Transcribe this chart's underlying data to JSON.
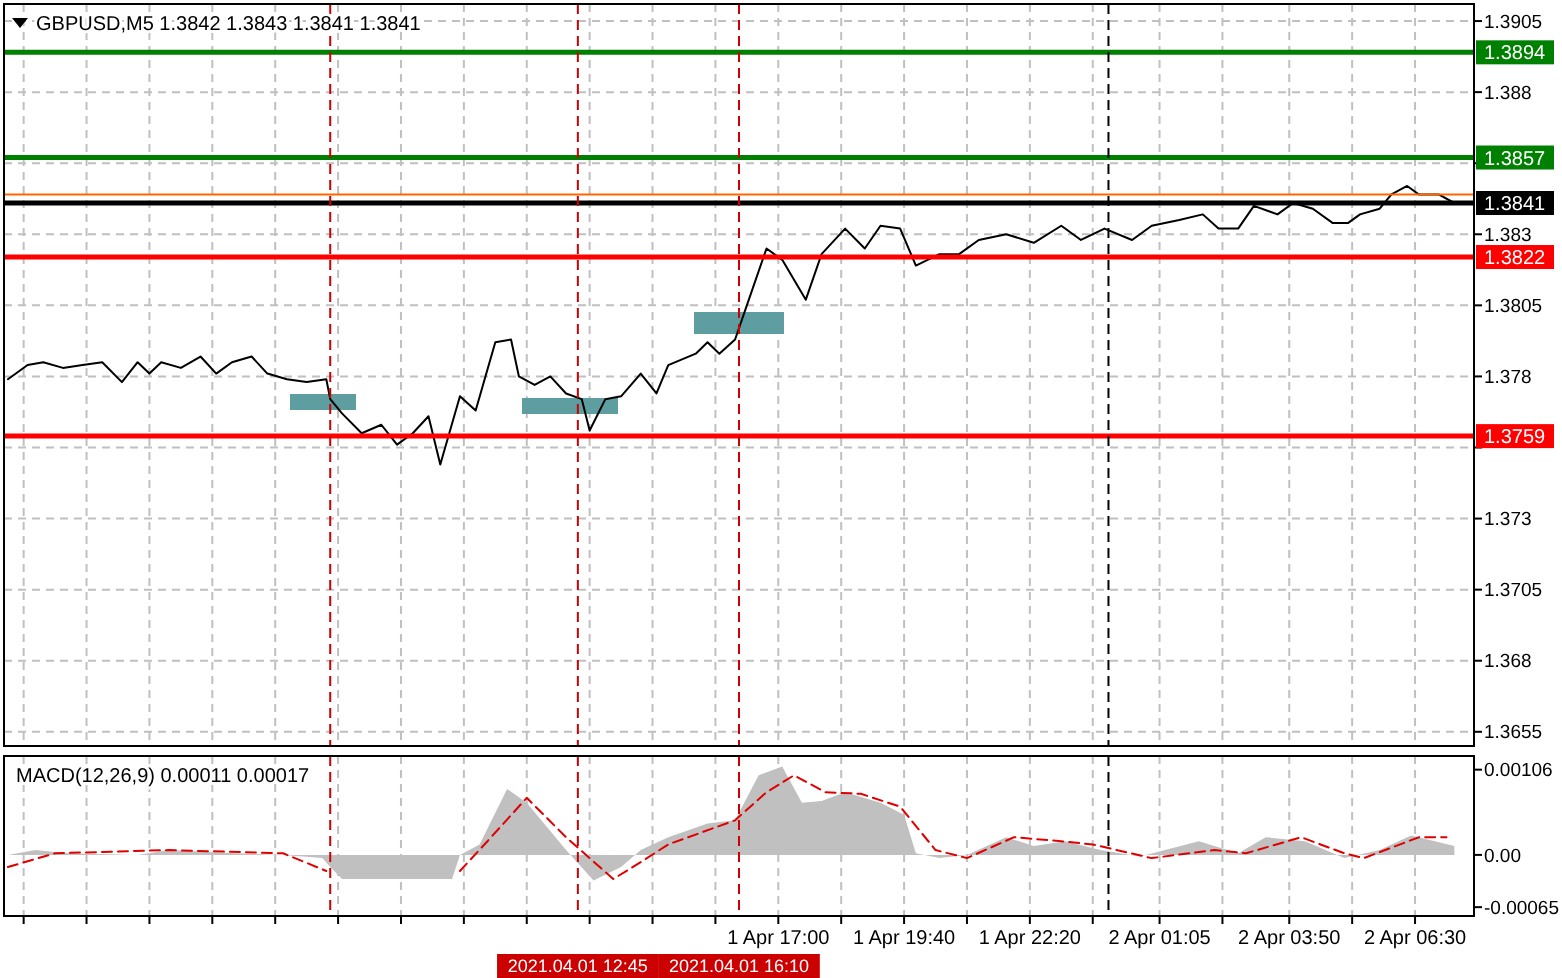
{
  "chart_data": [
    {
      "type": "line",
      "title": "GBPUSD,M5  1.3842 1.3843 1.3841 1.3841",
      "tick_labels": "y",
      "grid": true,
      "xlim": [
        "2021-04-01T00:35",
        "2021-04-02T07:45"
      ],
      "xticks": [
        {
          "value": "2021-04-01T01:00",
          "label": null
        },
        {
          "value": "2021-04-01T02:20",
          "label": null
        },
        {
          "value": "2021-04-01T03:40",
          "label": null
        },
        {
          "value": "2021-04-01T05:00",
          "label": null
        },
        {
          "value": "2021-04-01T06:20",
          "label": null
        },
        {
          "value": "2021-04-01T07:40",
          "label": null
        },
        {
          "value": "2021-04-01T09:00",
          "label": null
        },
        {
          "value": "2021-04-01T10:20",
          "label": null
        },
        {
          "value": "2021-04-01T11:40",
          "label": null
        },
        {
          "value": "2021-04-01T13:00",
          "label": null
        },
        {
          "value": "2021-04-01T14:20",
          "label": null
        },
        {
          "value": "2021-04-01T15:40",
          "label": null
        },
        {
          "value": "2021-04-01T17:00",
          "label": null
        },
        {
          "value": "2021-04-01T18:20",
          "label": null
        },
        {
          "value": "2021-04-01T19:40",
          "label": null
        },
        {
          "value": "2021-04-01T21:00",
          "label": null
        },
        {
          "value": "2021-04-01T22:20",
          "label": null
        },
        {
          "value": "2021-04-01T23:40",
          "label": null
        },
        {
          "value": "2021-04-02T01:05",
          "label": null
        },
        {
          "value": "2021-04-02T02:25",
          "label": null
        },
        {
          "value": "2021-04-02T03:50",
          "label": null
        },
        {
          "value": "2021-04-02T05:10",
          "label": null
        },
        {
          "value": "2021-04-02T06:30",
          "label": null
        }
      ],
      "ylim": [
        1.365,
        1.3911
      ],
      "yticks": [
        1.3905,
        1.388,
        {
          "value": 1.3855,
          "label": null
        },
        1.383,
        1.3805,
        1.378,
        {
          "value": 1.3755,
          "label": null
        },
        1.373,
        1.3705,
        1.368,
        1.3655
      ],
      "series": [
        {
          "color": "#000000",
          "x": [
            "2021-04-01T00:40",
            "2021-04-01T01:05",
            "2021-04-01T01:25",
            "2021-04-01T01:50",
            "2021-04-01T02:15",
            "2021-04-01T02:40",
            "2021-04-01T03:05",
            "2021-04-01T03:25",
            "2021-04-01T03:40",
            "2021-04-01T03:55",
            "2021-04-01T04:20",
            "2021-04-01T04:45",
            "2021-04-01T05:05",
            "2021-04-01T05:25",
            "2021-04-01T05:50",
            "2021-04-01T06:10",
            "2021-04-01T06:35",
            "2021-04-01T07:00",
            "2021-04-01T07:25",
            "2021-04-01T07:30",
            "2021-04-01T07:45",
            "2021-04-01T08:10",
            "2021-04-01T08:35",
            "2021-04-01T08:55",
            "2021-04-01T09:15",
            "2021-04-01T09:35",
            "2021-04-01T09:50",
            "2021-04-01T10:15",
            "2021-04-01T10:35",
            "2021-04-01T11:00",
            "2021-04-01T11:20",
            "2021-04-01T11:30",
            "2021-04-01T11:50",
            "2021-04-01T12:10",
            "2021-04-01T12:30",
            "2021-04-01T12:50",
            "2021-04-01T13:00",
            "2021-04-01T13:20",
            "2021-04-01T13:40",
            "2021-04-01T14:05",
            "2021-04-01T14:25",
            "2021-04-01T14:40",
            "2021-04-01T15:15",
            "2021-04-01T15:30",
            "2021-04-01T15:45",
            "2021-04-01T16:05",
            "2021-04-01T16:20",
            "2021-04-01T16:45",
            "2021-04-01T17:05",
            "2021-04-01T17:35",
            "2021-04-01T17:55",
            "2021-04-01T18:25",
            "2021-04-01T18:50",
            "2021-04-01T19:10",
            "2021-04-01T19:35",
            "2021-04-01T19:55",
            "2021-04-01T20:25",
            "2021-04-01T20:50",
            "2021-04-01T21:15",
            "2021-04-01T21:50",
            "2021-04-01T22:25",
            "2021-04-01T23:00",
            "2021-04-01T23:25",
            "2021-04-01T23:55",
            "2021-04-02T00:30",
            "2021-04-02T00:55",
            "2021-04-02T01:30",
            "2021-04-02T02:00",
            "2021-04-02T02:20",
            "2021-04-02T02:45",
            "2021-04-02T03:05",
            "2021-04-02T03:35",
            "2021-04-02T03:55",
            "2021-04-02T04:20",
            "2021-04-02T04:45",
            "2021-04-02T05:05",
            "2021-04-02T05:20",
            "2021-04-02T05:45",
            "2021-04-02T06:00",
            "2021-04-02T06:20",
            "2021-04-02T06:35",
            "2021-04-02T07:00",
            "2021-04-02T07:20"
          ],
          "values": [
            1.3779,
            1.3784,
            1.3785,
            1.3783,
            1.3784,
            1.3785,
            1.3778,
            1.3785,
            1.3781,
            1.3785,
            1.3783,
            1.3787,
            1.3781,
            1.3785,
            1.3787,
            1.3781,
            1.3779,
            1.3778,
            1.3779,
            1.3772,
            1.3767,
            1.376,
            1.3763,
            1.3756,
            1.376,
            1.3766,
            1.3749,
            1.3773,
            1.3768,
            1.3792,
            1.3793,
            1.378,
            1.3777,
            1.378,
            1.3774,
            1.3772,
            1.3761,
            1.3772,
            1.3773,
            1.3781,
            1.3774,
            1.3784,
            1.3788,
            1.3792,
            1.3788,
            1.3793,
            1.3805,
            1.3825,
            1.3821,
            1.3807,
            1.3823,
            1.3832,
            1.3825,
            1.3833,
            1.3832,
            1.3819,
            1.3823,
            1.3823,
            1.3828,
            1.383,
            1.3827,
            1.3833,
            1.3828,
            1.3832,
            1.3828,
            1.3833,
            1.3835,
            1.3837,
            1.3832,
            1.3832,
            1.384,
            1.3837,
            1.3841,
            1.3839,
            1.3834,
            1.3834,
            1.3837,
            1.3839,
            1.3844,
            1.3847,
            1.3844,
            1.3844,
            1.3841
          ]
        }
      ],
      "ref_lines": [
        {
          "axis": "y",
          "value": 1.3894,
          "label": "1.3894",
          "color": "#008000"
        },
        {
          "axis": "y",
          "value": 1.3857,
          "label": "1.3857",
          "color": "#008000"
        },
        {
          "axis": "y",
          "value": 1.3844,
          "color": "#ff6600"
        },
        {
          "axis": "y",
          "value": 1.3841,
          "label": "1.3841",
          "color": "#000000"
        },
        {
          "axis": "y",
          "value": 1.3822,
          "label": "1.3822",
          "color": "#ff0000"
        },
        {
          "axis": "y",
          "value": 1.3759,
          "label": "1.3759",
          "color": "#ff0000"
        },
        {
          "axis": "x",
          "value": "2021-04-01T07:30",
          "color": "#cc0000",
          "line_style": "dashed"
        },
        {
          "axis": "x",
          "value": "2021-04-01T12:45",
          "color": "#cc0000",
          "line_style": "dashed"
        },
        {
          "axis": "x",
          "value": "2021-04-01T16:10",
          "color": "#cc0000",
          "line_style": "dashed"
        },
        {
          "axis": "x",
          "value": "2021-04-02T00:00",
          "color": "#000000",
          "line_style": "dashed"
        }
      ]
    },
    {
      "type": "area",
      "title": "MACD(12,26,9) 0.00011 0.00017",
      "grid": "x",
      "xlim": [
        "2021-04-01T00:35",
        "2021-04-02T07:45"
      ],
      "xticks": [
        {
          "value": "2021-04-01T01:00",
          "label": null
        },
        {
          "value": "2021-04-01T02:20",
          "label": null
        },
        {
          "value": "2021-04-01T03:40",
          "label": null
        },
        {
          "value": "2021-04-01T05:00",
          "label": null
        },
        {
          "value": "2021-04-01T06:20",
          "label": null
        },
        {
          "value": "2021-04-01T07:40",
          "label": null
        },
        {
          "value": "2021-04-01T09:00",
          "label": null
        },
        {
          "value": "2021-04-01T10:20",
          "label": null
        },
        {
          "value": "2021-04-01T11:40",
          "label": null
        },
        {
          "value": "2021-04-01T13:00",
          "label": null
        },
        {
          "value": "2021-04-01T14:20",
          "label": null
        },
        {
          "value": "2021-04-01T15:40",
          "label": null
        },
        {
          "value": "2021-04-01T17:00",
          "label": "1 Apr 17:00"
        },
        {
          "value": "2021-04-01T18:20",
          "label": null
        },
        {
          "value": "2021-04-01T19:40",
          "label": "1 Apr 19:40"
        },
        {
          "value": "2021-04-01T21:00",
          "label": null
        },
        {
          "value": "2021-04-01T22:20",
          "label": "1 Apr 22:20"
        },
        {
          "value": "2021-04-01T23:40",
          "label": null
        },
        {
          "value": "2021-04-02T01:05",
          "label": "2 Apr 01:05"
        },
        {
          "value": "2021-04-02T02:25",
          "label": null
        },
        {
          "value": "2021-04-02T03:50",
          "label": "2 Apr 03:50"
        },
        {
          "value": "2021-04-02T05:10",
          "label": null
        },
        {
          "value": "2021-04-02T06:30",
          "label": "2 Apr 06:30"
        }
      ],
      "ylim": [
        -0.00076,
        0.00123
      ],
      "yticks": [
        0.00106,
        {
          "value": 0,
          "label": "0.00"
        },
        -0.00065
      ],
      "series": [
        {
          "color": "#c0c0c0",
          "x": [
            "2021-04-01T00:40",
            "2021-04-01T01:15",
            "2021-04-01T01:55",
            "2021-04-01T03:25",
            "2021-04-01T04:05",
            "2021-04-01T05:30",
            "2021-04-01T06:30",
            "2021-04-01T07:20",
            "2021-04-01T07:30",
            "2021-04-01T07:45",
            "2021-04-01T10:05",
            "2021-04-01T10:15",
            "2021-04-01T10:40",
            "2021-04-01T11:15",
            "2021-04-01T11:40",
            "2021-04-01T12:30",
            "2021-04-01T13:05",
            "2021-04-01T13:40",
            "2021-04-01T14:05",
            "2021-04-01T14:40",
            "2021-04-01T15:30",
            "2021-04-01T16:05",
            "2021-04-01T16:35",
            "2021-04-01T17:05",
            "2021-04-01T17:30",
            "2021-04-01T17:55",
            "2021-04-01T18:25",
            "2021-04-01T19:10",
            "2021-04-01T19:40",
            "2021-04-01T19:55",
            "2021-04-01T20:25",
            "2021-04-01T21:00",
            "2021-04-01T21:50",
            "2021-04-01T22:25",
            "2021-04-01T23:05",
            "2021-04-01T23:50",
            "2021-04-02T00:40",
            "2021-04-02T01:55",
            "2021-04-02T02:45",
            "2021-04-02T03:20",
            "2021-04-02T04:10",
            "2021-04-02T05:00",
            "2021-04-02T05:45",
            "2021-04-02T06:25",
            "2021-04-02T07:20"
          ],
          "values": [
            0,
            6e-05,
            2e-05,
            0,
            6e-05,
            2e-05,
            0,
            -4e-05,
            -0.00015,
            -0.0003,
            -0.0003,
            0,
            0.00013,
            0.00082,
            0.00065,
            6e-05,
            -0.00032,
            -0.00015,
            6e-05,
            0.00022,
            0.00039,
            0.00043,
            0.00099,
            0.0011,
            0.00065,
            0.00067,
            0.00078,
            0.00065,
            0.0005,
            2e-05,
            -4e-05,
            0,
            0.00022,
            0.00011,
            0.00017,
            6e-05,
            -2e-05,
            0.00017,
            2e-05,
            0.00022,
            0.00017,
            -4e-05,
            6e-05,
            0.00024,
            0.00011
          ]
        },
        {
          "type": "line",
          "color": "#e00000",
          "line_style": "dashed",
          "x": [
            "2021-04-01T00:40",
            "2021-04-01T01:40",
            "2021-04-01T04:05",
            "2021-04-01T06:30",
            "2021-04-01T07:25",
            "2021-04-01T08:30",
            "2021-04-01T10:15",
            "2021-04-01T10:50",
            "2021-04-01T11:40",
            "2021-04-01T12:30",
            "2021-04-01T13:30",
            "2021-04-01T14:05",
            "2021-04-01T14:40",
            "2021-04-01T16:05",
            "2021-04-01T16:45",
            "2021-04-01T17:20",
            "2021-04-01T18:00",
            "2021-04-01T18:45",
            "2021-04-01T19:35",
            "2021-04-01T20:20",
            "2021-04-01T21:00",
            "2021-04-01T22:00",
            "2021-04-01T23:00",
            "2021-04-01T23:40",
            "2021-04-02T00:55",
            "2021-04-02T02:15",
            "2021-04-02T02:55",
            "2021-04-02T04:05",
            "2021-04-02T05:00",
            "2021-04-02T05:25",
            "2021-04-02T06:35",
            "2021-04-02T07:10"
          ],
          "values": [
            -0.00015,
            2e-05,
            6e-05,
            2e-05,
            -0.0002,
            null,
            -0.0002,
            0.00017,
            0.00071,
            0.00022,
            -0.0003,
            -9e-05,
            0.00013,
            0.00043,
            0.00078,
            0.00099,
            0.00078,
            0.00076,
            0.0006,
            6e-05,
            -4e-05,
            0.00022,
            0.00017,
            0.00013,
            -4e-05,
            6e-05,
            2e-05,
            0.00022,
            2e-05,
            -4e-05,
            0.00022,
            0.00022
          ]
        }
      ],
      "ref_lines": [
        {
          "axis": "x",
          "value": "2021-04-01T07:30",
          "color": "#cc0000",
          "line_style": "dashed"
        },
        {
          "axis": "x",
          "value": "2021-04-01T12:45",
          "label": "2021.04.01 12:45",
          "color": "#cc0000",
          "line_style": "dashed"
        },
        {
          "axis": "x",
          "value": "2021-04-01T16:10",
          "label": "2021.04.01 16:10",
          "color": "#cc0000",
          "line_style": "dashed"
        },
        {
          "axis": "x",
          "value": "2021-04-02T00:00",
          "color": "#000000",
          "line_style": "dashed"
        }
      ]
    }
  ]
}
